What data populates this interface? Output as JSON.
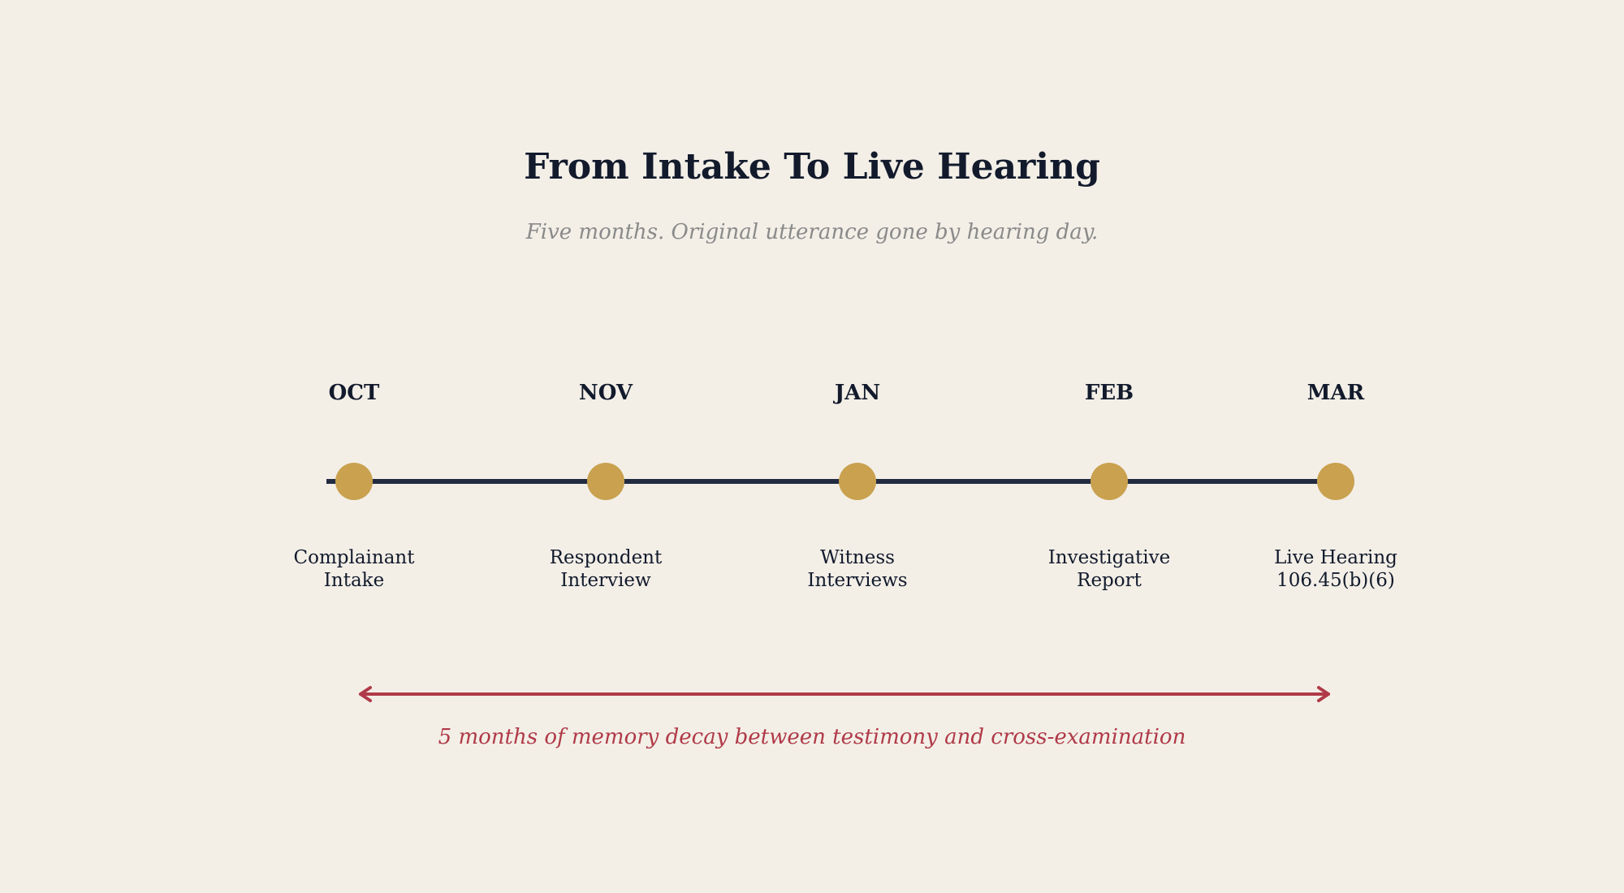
{
  "colors": {
    "background": "#F3EFE7",
    "title": "#121A2C",
    "subtitle": "#8A8A8A",
    "timeline_line": "#222B40",
    "milestone_dot": "#C9A14F",
    "month_text": "#121A2C",
    "label_text": "#121A2C",
    "decay_accent": "#B03A48"
  },
  "title": "From Intake To Live Hearing",
  "subtitle": "Five months. Original utterance gone by hearing day.",
  "milestones": [
    {
      "month": "OCT",
      "label_lines": [
        "Complainant",
        "Intake"
      ]
    },
    {
      "month": "NOV",
      "label_lines": [
        "Respondent",
        "Interview"
      ]
    },
    {
      "month": "JAN",
      "label_lines": [
        "Witness",
        "Interviews"
      ]
    },
    {
      "month": "FEB",
      "label_lines": [
        "Investigative",
        "Report"
      ]
    },
    {
      "month": "MAR",
      "label_lines": [
        "Live Hearing",
        "106.45(b)(6)"
      ]
    }
  ],
  "decay_span": {
    "icon": "double-arrow-icon",
    "caption": "5 months of memory decay between testimony and cross-examination"
  }
}
